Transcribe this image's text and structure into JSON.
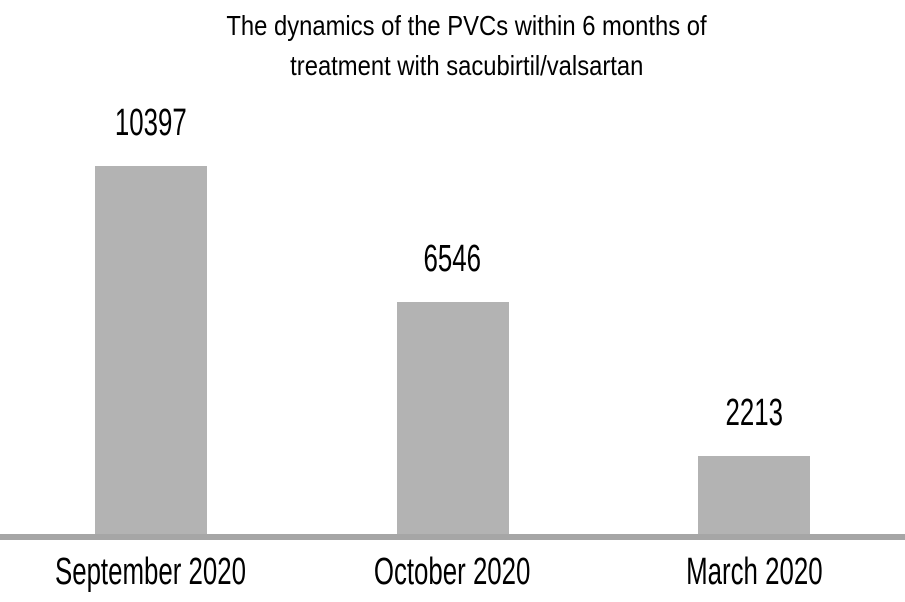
{
  "chart_data": {
    "type": "bar",
    "title": "The dynamics of the PVCs within 6 months of treatment with sacubirtil/valsartan",
    "title_lines": [
      "The dynamics of the PVCs within 6 months of",
      "treatment with sacubirtil/valsartan"
    ],
    "categories": [
      "September 2020",
      "October 2020",
      "March 2020"
    ],
    "values": [
      10397,
      6546,
      2213
    ],
    "xlabel": "",
    "ylabel": "",
    "ylim": [
      0,
      10400
    ],
    "grid": false,
    "legend": "none",
    "data_labels": "outside-end",
    "bar_color": "#b3b3b3",
    "axis_line_color": "#a6a6a6",
    "text_color": "#000000",
    "background": "#ffffff"
  }
}
